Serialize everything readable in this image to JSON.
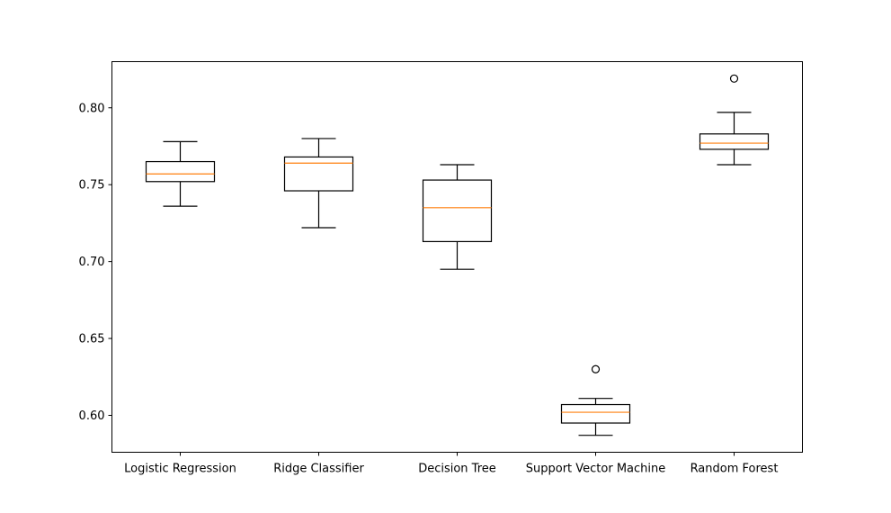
{
  "chart_data": {
    "type": "boxplot",
    "title": "",
    "xlabel": "",
    "ylabel": "",
    "ylim": [
      0.576,
      0.83
    ],
    "yticks": [
      0.6,
      0.65,
      0.7,
      0.75,
      0.8
    ],
    "ytick_labels": [
      "0.60",
      "0.65",
      "0.70",
      "0.75",
      "0.80"
    ],
    "grid": false,
    "median_color": "#ff7f0e",
    "box_color": "#000000",
    "categories": [
      "Logistic Regression",
      "Ridge Classifier",
      "Decision Tree",
      "Support Vector Machine",
      "Random Forest"
    ],
    "boxes": [
      {
        "whislo": 0.736,
        "q1": 0.752,
        "med": 0.757,
        "q3": 0.765,
        "whishi": 0.778,
        "fliers": []
      },
      {
        "whislo": 0.722,
        "q1": 0.746,
        "med": 0.764,
        "q3": 0.768,
        "whishi": 0.78,
        "fliers": []
      },
      {
        "whislo": 0.695,
        "q1": 0.713,
        "med": 0.735,
        "q3": 0.753,
        "whishi": 0.763,
        "fliers": []
      },
      {
        "whislo": 0.587,
        "q1": 0.595,
        "med": 0.602,
        "q3": 0.607,
        "whishi": 0.611,
        "fliers": [
          0.63
        ]
      },
      {
        "whislo": 0.763,
        "q1": 0.773,
        "med": 0.777,
        "q3": 0.783,
        "whishi": 0.797,
        "fliers": [
          0.819
        ]
      }
    ]
  }
}
